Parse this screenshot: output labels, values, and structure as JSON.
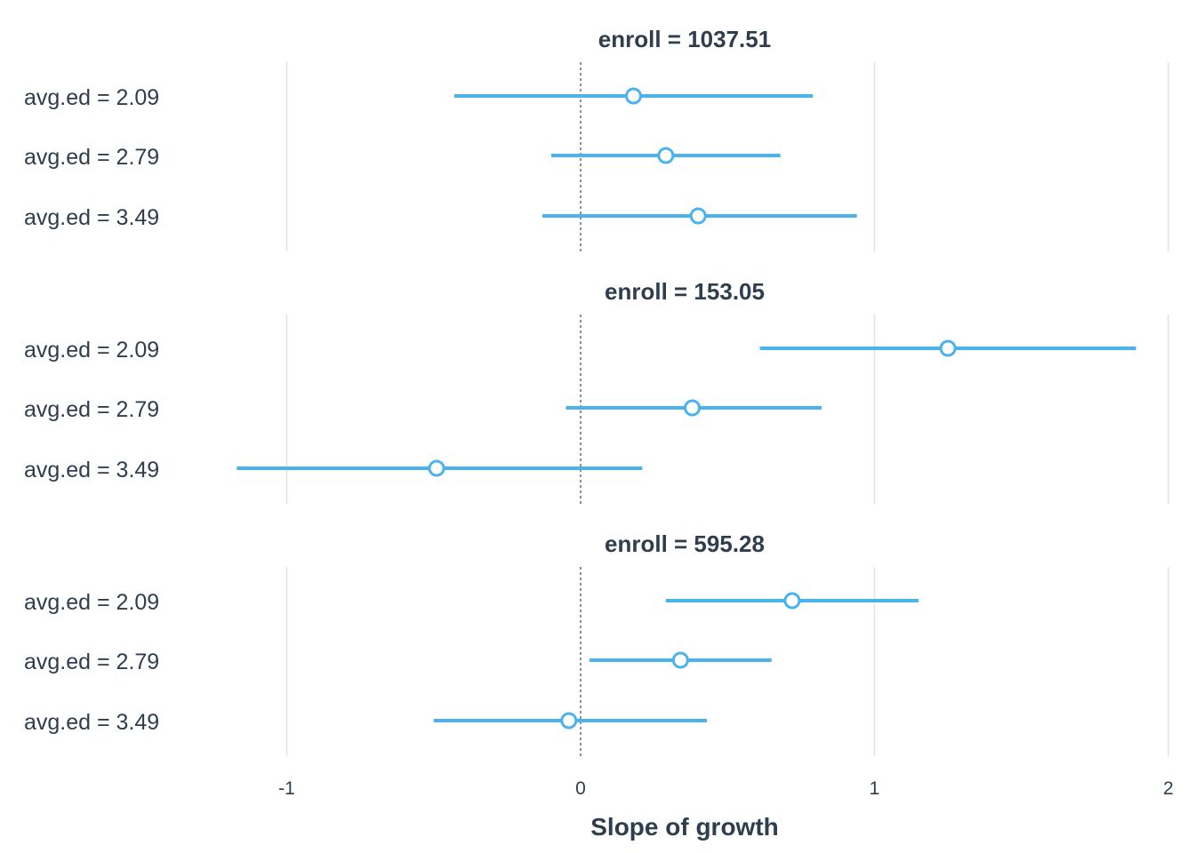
{
  "chart_data": {
    "type": "forest",
    "xlabel": "Slope of growth",
    "xlim": [
      -1.5,
      2.0
    ],
    "x_ticks": [
      -1,
      0,
      1,
      2
    ],
    "x_tick_labels": [
      "-1",
      "0",
      "1",
      "2"
    ],
    "reference_line": 0,
    "grid": true,
    "colors": {
      "interval": "#4ab3ef",
      "point_fill": "#ffffff",
      "text": "#2e3e4f"
    },
    "panels": [
      {
        "title": "enroll = 1037.51",
        "rows": [
          {
            "label": "avg.ed = 2.09",
            "estimate": 0.18,
            "lower": -0.43,
            "upper": 0.79
          },
          {
            "label": "avg.ed = 2.79",
            "estimate": 0.29,
            "lower": -0.1,
            "upper": 0.68
          },
          {
            "label": "avg.ed = 3.49",
            "estimate": 0.4,
            "lower": -0.13,
            "upper": 0.94
          }
        ]
      },
      {
        "title": "enroll = 153.05",
        "rows": [
          {
            "label": "avg.ed = 2.09",
            "estimate": 1.25,
            "lower": 0.61,
            "upper": 1.89
          },
          {
            "label": "avg.ed = 2.79",
            "estimate": 0.38,
            "lower": -0.05,
            "upper": 0.82
          },
          {
            "label": "avg.ed = 3.49",
            "estimate": -0.49,
            "lower": -1.17,
            "upper": 0.21
          }
        ]
      },
      {
        "title": "enroll = 595.28",
        "rows": [
          {
            "label": "avg.ed = 2.09",
            "estimate": 0.72,
            "lower": 0.29,
            "upper": 1.15
          },
          {
            "label": "avg.ed = 2.79",
            "estimate": 0.34,
            "lower": 0.03,
            "upper": 0.65
          },
          {
            "label": "avg.ed = 3.49",
            "estimate": -0.04,
            "lower": -0.5,
            "upper": 0.43
          }
        ]
      }
    ]
  }
}
